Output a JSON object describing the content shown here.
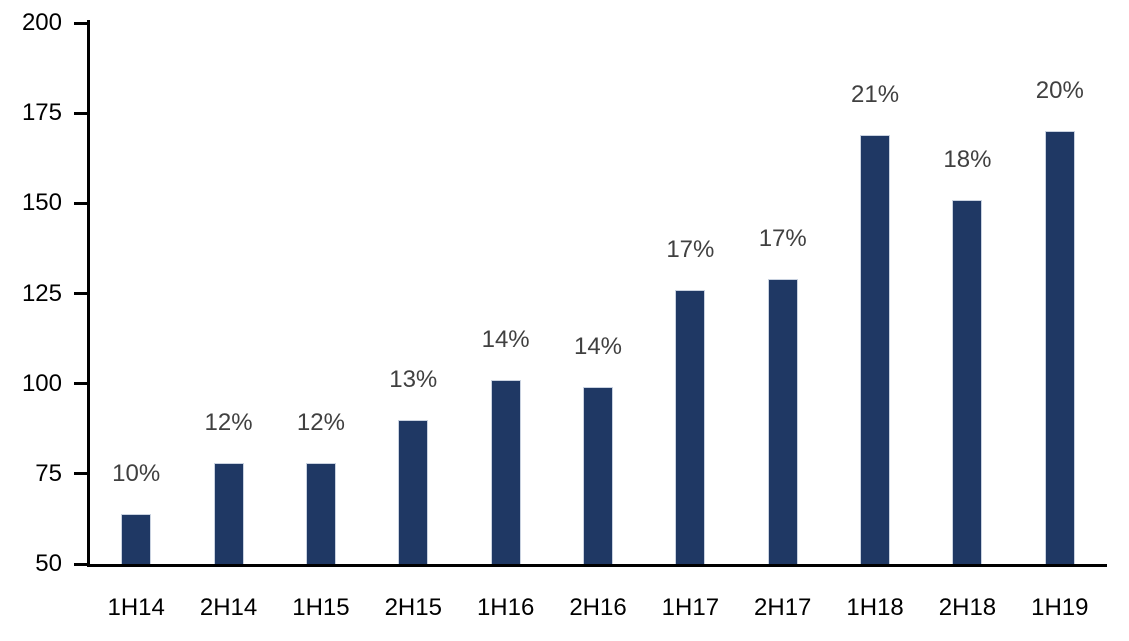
{
  "chart_data": {
    "type": "bar",
    "title": "",
    "xlabel": "",
    "ylabel": "",
    "categories": [
      "1H14",
      "2H14",
      "1H15",
      "2H15",
      "1H16",
      "2H16",
      "1H17",
      "2H17",
      "1H18",
      "2H18",
      "1H19"
    ],
    "values": [
      64,
      78,
      78,
      90,
      101,
      99,
      126,
      129,
      169,
      151,
      170
    ],
    "bar_labels": [
      "10%",
      "12%",
      "12%",
      "13%",
      "14%",
      "14%",
      "17%",
      "17%",
      "21%",
      "18%",
      "20%"
    ],
    "ylim": [
      50,
      200
    ],
    "yticks": [
      50,
      75,
      100,
      125,
      150,
      175,
      200
    ],
    "grid": false,
    "legend_position": "none",
    "colors": {
      "bar_fill": "#1F3864",
      "bar_edge": "#C9D2E0",
      "data_label": "#404040",
      "axis": "#000000",
      "background": "#FFFFFF"
    }
  }
}
